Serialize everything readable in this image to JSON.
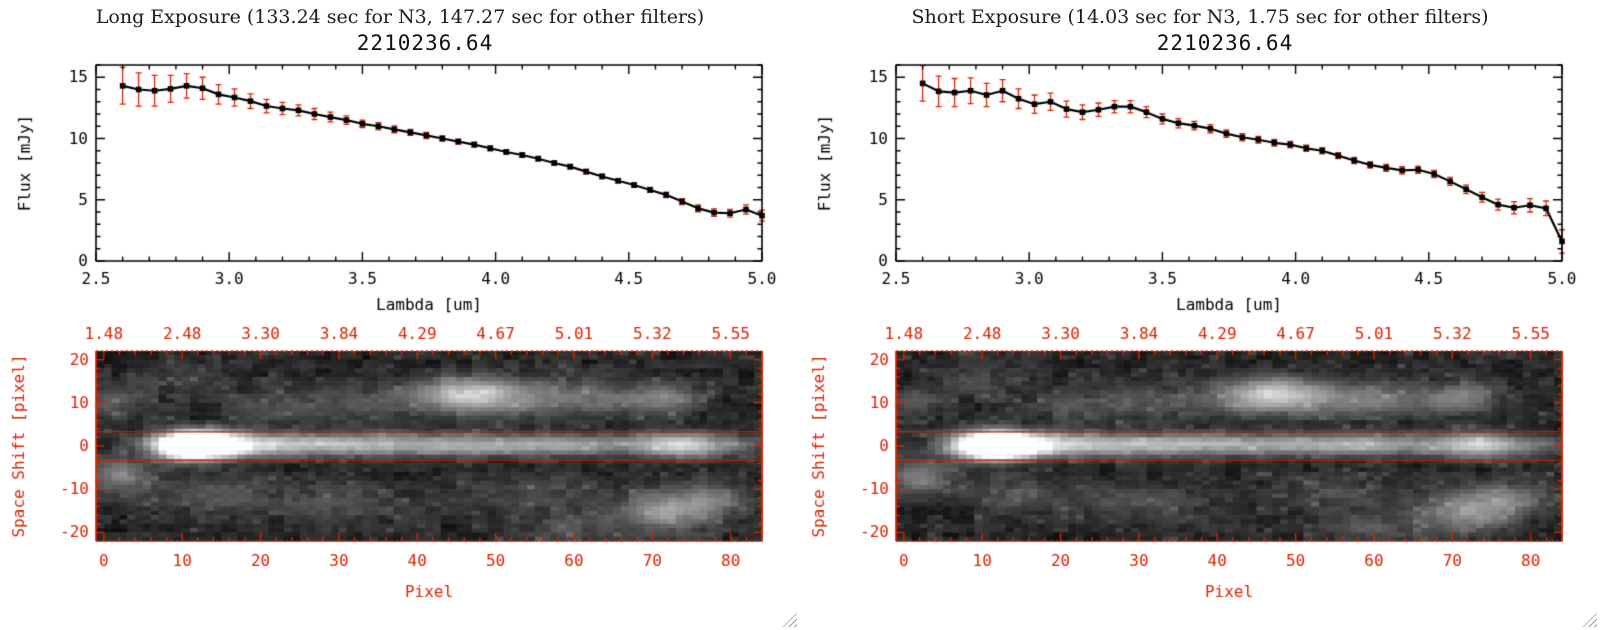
{
  "colors": {
    "accent_red": "#dd2200",
    "text": "#1c1c1c",
    "background": "#ffffff",
    "line_color": "#000000"
  },
  "panels": [
    {
      "id": "long",
      "header": "Long Exposure (133.24 sec for N3, 147.27 sec for other filters)",
      "spectrum_title": "2210236.64"
    },
    {
      "id": "short",
      "header": "Short Exposure (14.03 sec for N3, 1.75 sec for other filters)",
      "spectrum_title": "2210236.64"
    }
  ],
  "chart_data": [
    {
      "type": "line",
      "panel": "long",
      "title": "2210236.64",
      "xlabel": "Lambda [um]",
      "ylabel": "Flux [mJy]",
      "xlim": [
        2.5,
        5.0
      ],
      "ylim": [
        0,
        16
      ],
      "xticks": [
        2.5,
        3.0,
        3.5,
        4.0,
        4.5,
        5.0
      ],
      "yticks": [
        0,
        5,
        10,
        15
      ],
      "marker": "square",
      "line_color": "#000000",
      "error_color": "#dd2200",
      "x": [
        2.6,
        2.66,
        2.72,
        2.78,
        2.84,
        2.9,
        2.96,
        3.02,
        3.08,
        3.14,
        3.2,
        3.26,
        3.32,
        3.38,
        3.44,
        3.5,
        3.56,
        3.62,
        3.68,
        3.74,
        3.8,
        3.86,
        3.92,
        3.98,
        4.04,
        4.1,
        4.16,
        4.22,
        4.28,
        4.34,
        4.4,
        4.46,
        4.52,
        4.58,
        4.64,
        4.7,
        4.76,
        4.82,
        4.88,
        4.94,
        5.0
      ],
      "y": [
        14.3,
        14.0,
        13.9,
        14.05,
        14.3,
        14.1,
        13.6,
        13.35,
        13.05,
        12.65,
        12.45,
        12.3,
        12.0,
        11.75,
        11.5,
        11.2,
        11.0,
        10.75,
        10.5,
        10.25,
        10.0,
        9.75,
        9.5,
        9.2,
        8.9,
        8.65,
        8.35,
        8.0,
        7.7,
        7.3,
        6.9,
        6.55,
        6.2,
        5.8,
        5.4,
        4.85,
        4.3,
        3.95,
        3.9,
        4.2,
        3.7
      ],
      "yerr": [
        1.5,
        1.35,
        1.25,
        1.1,
        1.0,
        0.9,
        0.8,
        0.7,
        0.6,
        0.55,
        0.5,
        0.45,
        0.45,
        0.4,
        0.35,
        0.3,
        0.3,
        0.28,
        0.25,
        0.25,
        0.22,
        0.2,
        0.2,
        0.2,
        0.18,
        0.18,
        0.18,
        0.18,
        0.18,
        0.18,
        0.18,
        0.18,
        0.18,
        0.2,
        0.22,
        0.25,
        0.28,
        0.3,
        0.32,
        0.38,
        0.45
      ]
    },
    {
      "type": "line",
      "panel": "short",
      "title": "2210236.64",
      "xlabel": "Lambda [um]",
      "ylabel": "Flux [mJy]",
      "xlim": [
        2.5,
        5.0
      ],
      "ylim": [
        0,
        16
      ],
      "xticks": [
        2.5,
        3.0,
        3.5,
        4.0,
        4.5,
        5.0
      ],
      "yticks": [
        0,
        5,
        10,
        15
      ],
      "marker": "square",
      "line_color": "#000000",
      "error_color": "#dd2200",
      "x": [
        2.6,
        2.66,
        2.72,
        2.78,
        2.84,
        2.9,
        2.96,
        3.02,
        3.08,
        3.14,
        3.2,
        3.26,
        3.32,
        3.38,
        3.44,
        3.5,
        3.56,
        3.62,
        3.68,
        3.74,
        3.8,
        3.86,
        3.92,
        3.98,
        4.04,
        4.1,
        4.16,
        4.22,
        4.28,
        4.34,
        4.4,
        4.46,
        4.52,
        4.58,
        4.64,
        4.7,
        4.76,
        4.82,
        4.88,
        4.94,
        5.0
      ],
      "y": [
        14.5,
        13.85,
        13.75,
        13.9,
        13.55,
        13.9,
        13.25,
        12.8,
        13.0,
        12.4,
        12.15,
        12.35,
        12.6,
        12.6,
        12.15,
        11.6,
        11.25,
        11.05,
        10.8,
        10.4,
        10.1,
        9.9,
        9.65,
        9.5,
        9.2,
        9.0,
        8.6,
        8.2,
        7.85,
        7.6,
        7.4,
        7.45,
        7.1,
        6.5,
        5.85,
        5.2,
        4.6,
        4.35,
        4.55,
        4.3,
        1.6
      ],
      "yerr": [
        1.45,
        1.25,
        1.15,
        1.05,
        0.95,
        0.9,
        0.8,
        0.75,
        0.7,
        0.65,
        0.6,
        0.55,
        0.5,
        0.5,
        0.45,
        0.4,
        0.38,
        0.35,
        0.33,
        0.3,
        0.3,
        0.28,
        0.27,
        0.26,
        0.25,
        0.25,
        0.25,
        0.25,
        0.26,
        0.28,
        0.3,
        0.3,
        0.3,
        0.32,
        0.35,
        0.4,
        0.45,
        0.5,
        0.55,
        0.6,
        0.95
      ]
    },
    {
      "type": "heatmap",
      "panel": "long",
      "xlabel": "Pixel",
      "ylabel": "Space Shift [pixel]",
      "xlim": [
        -1,
        84
      ],
      "ylim": [
        -22,
        22
      ],
      "xticks": [
        0,
        10,
        20,
        30,
        40,
        50,
        60,
        70,
        80
      ],
      "yticks": [
        -20,
        -10,
        0,
        10,
        20
      ],
      "top_axis_labels": [
        "1.48",
        "2.48",
        "3.30",
        "3.84",
        "4.29",
        "4.67",
        "5.01",
        "5.32",
        "5.55"
      ],
      "extraction_lines_y": [
        3.3,
        -3.3
      ],
      "noise_seed": 7,
      "features": [
        {
          "x": 11.5,
          "y": 0.2,
          "sx": 3.2,
          "sy": 2.0,
          "a": 1.9
        },
        {
          "x": 16,
          "y": 0.3,
          "sx": 5,
          "sy": 1.9,
          "a": 0.5
        },
        {
          "x": 25,
          "y": 0.3,
          "sx": 8,
          "sy": 1.8,
          "a": 0.38
        },
        {
          "x": 38,
          "y": 0.3,
          "sx": 10,
          "sy": 1.7,
          "a": 0.33
        },
        {
          "x": 52,
          "y": 0.3,
          "sx": 10,
          "sy": 1.6,
          "a": 0.3
        },
        {
          "x": 63,
          "y": 0.3,
          "sx": 8,
          "sy": 1.6,
          "a": 0.28
        },
        {
          "x": 73,
          "y": 0.2,
          "sx": 3,
          "sy": 2.0,
          "a": 0.5
        },
        {
          "x": 79,
          "y": 0.2,
          "sx": 4,
          "sy": 1.6,
          "a": 0.3
        },
        {
          "x": 46.5,
          "y": 12,
          "sx": 4.5,
          "sy": 2.6,
          "a": 0.55
        },
        {
          "x": 54,
          "y": 11,
          "sx": 7,
          "sy": 3,
          "a": 0.22
        },
        {
          "x": 63,
          "y": 11,
          "sx": 5,
          "sy": 2.6,
          "a": 0.18
        },
        {
          "x": 33,
          "y": 10,
          "sx": 6,
          "sy": 3,
          "a": 0.15
        },
        {
          "x": 22,
          "y": 9,
          "sx": 4,
          "sy": 2.5,
          "a": 0.13
        },
        {
          "x": 71.5,
          "y": 11,
          "sx": 3,
          "sy": 2.4,
          "a": 0.3
        },
        {
          "x": 2,
          "y": -7,
          "sx": 3,
          "sy": 3,
          "a": 0.32
        },
        {
          "x": 1,
          "y": 10,
          "sx": 2.5,
          "sy": 2.5,
          "a": 0.2
        },
        {
          "x": 72,
          "y": -15,
          "sx": 4,
          "sy": 3.2,
          "a": 0.45
        },
        {
          "x": 78,
          "y": -12,
          "sx": 3,
          "sy": 2.6,
          "a": 0.25
        },
        {
          "x": 30,
          "y": -13,
          "sx": 7,
          "sy": 3.5,
          "a": 0.13
        },
        {
          "x": 14,
          "y": -11,
          "sx": 4,
          "sy": 3,
          "a": 0.15
        },
        {
          "x": 55,
          "y": -11,
          "sx": 6,
          "sy": 3,
          "a": 0.12
        },
        {
          "x": 10,
          "y": 15,
          "sx": 4,
          "sy": 3,
          "a": 0.1
        },
        {
          "x": 60,
          "y": -19,
          "sx": 5,
          "sy": 2.5,
          "a": 0.15
        }
      ]
    },
    {
      "type": "heatmap",
      "panel": "short",
      "xlabel": "Pixel",
      "ylabel": "Space Shift [pixel]",
      "xlim": [
        -1,
        84
      ],
      "ylim": [
        -22,
        22
      ],
      "xticks": [
        0,
        10,
        20,
        30,
        40,
        50,
        60,
        70,
        80
      ],
      "yticks": [
        -20,
        -10,
        0,
        10,
        20
      ],
      "top_axis_labels": [
        "1.48",
        "2.48",
        "3.30",
        "3.84",
        "4.29",
        "4.67",
        "5.01",
        "5.32",
        "5.55"
      ],
      "extraction_lines_y": [
        3.3,
        -3.3
      ],
      "noise_seed": 13,
      "features": [
        {
          "x": 11.5,
          "y": 0.2,
          "sx": 3.2,
          "sy": 2.0,
          "a": 1.9
        },
        {
          "x": 16,
          "y": 0.3,
          "sx": 5,
          "sy": 1.9,
          "a": 0.5
        },
        {
          "x": 25,
          "y": 0.3,
          "sx": 8,
          "sy": 1.8,
          "a": 0.38
        },
        {
          "x": 38,
          "y": 0.3,
          "sx": 10,
          "sy": 1.7,
          "a": 0.33
        },
        {
          "x": 52,
          "y": 0.3,
          "sx": 10,
          "sy": 1.6,
          "a": 0.3
        },
        {
          "x": 63,
          "y": 0.3,
          "sx": 8,
          "sy": 1.6,
          "a": 0.28
        },
        {
          "x": 73,
          "y": 0.2,
          "sx": 3,
          "sy": 2.0,
          "a": 0.5
        },
        {
          "x": 79,
          "y": 0.2,
          "sx": 4,
          "sy": 1.6,
          "a": 0.3
        },
        {
          "x": 46.5,
          "y": 12,
          "sx": 4.5,
          "sy": 2.6,
          "a": 0.55
        },
        {
          "x": 54,
          "y": 11,
          "sx": 7,
          "sy": 3,
          "a": 0.22
        },
        {
          "x": 63,
          "y": 11,
          "sx": 5,
          "sy": 2.6,
          "a": 0.18
        },
        {
          "x": 33,
          "y": 10,
          "sx": 6,
          "sy": 3,
          "a": 0.15
        },
        {
          "x": 22,
          "y": 9,
          "sx": 4,
          "sy": 2.5,
          "a": 0.13
        },
        {
          "x": 71.5,
          "y": 11,
          "sx": 3,
          "sy": 2.4,
          "a": 0.3
        },
        {
          "x": 2,
          "y": -7,
          "sx": 3,
          "sy": 3,
          "a": 0.32
        },
        {
          "x": 1,
          "y": 10,
          "sx": 2.5,
          "sy": 2.5,
          "a": 0.2
        },
        {
          "x": 72,
          "y": -15,
          "sx": 4,
          "sy": 3.2,
          "a": 0.45
        },
        {
          "x": 78,
          "y": -12,
          "sx": 3,
          "sy": 2.6,
          "a": 0.25
        },
        {
          "x": 30,
          "y": -13,
          "sx": 7,
          "sy": 3.5,
          "a": 0.13
        },
        {
          "x": 14,
          "y": -11,
          "sx": 4,
          "sy": 3,
          "a": 0.15
        },
        {
          "x": 55,
          "y": -11,
          "sx": 6,
          "sy": 3,
          "a": 0.12
        },
        {
          "x": 10,
          "y": 15,
          "sx": 4,
          "sy": 3,
          "a": 0.1
        },
        {
          "x": 60,
          "y": -19,
          "sx": 5,
          "sy": 2.5,
          "a": 0.15
        }
      ]
    }
  ]
}
